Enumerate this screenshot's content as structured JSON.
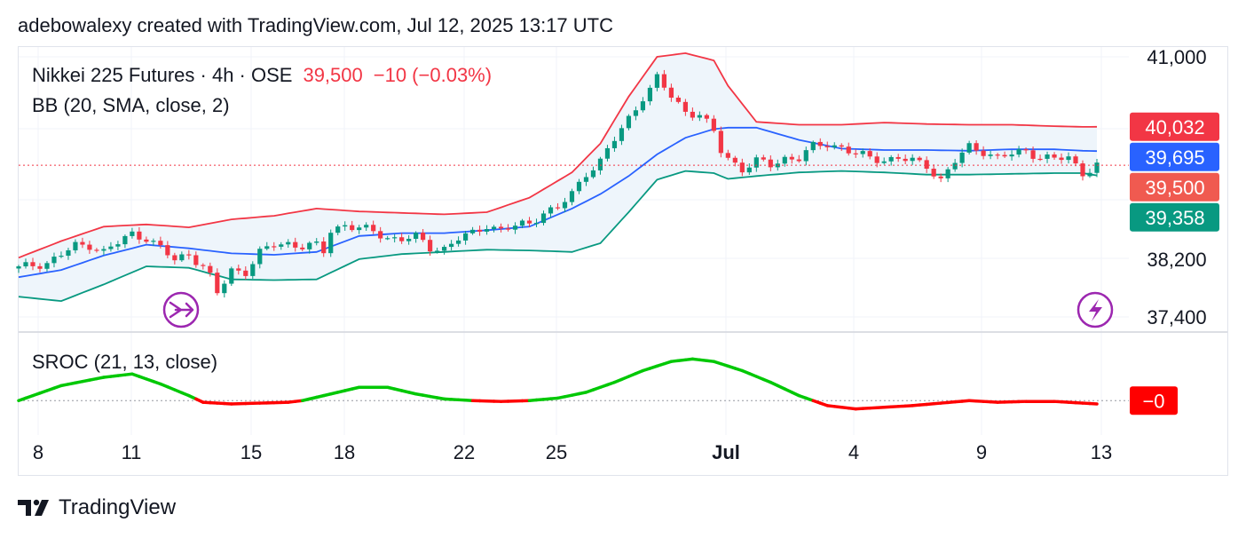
{
  "header": {
    "text": "adebowalexy created with TradingView.com, Jul 12, 2025 13:17 UTC"
  },
  "legend": {
    "symbol": "Nikkei 225 Futures · 4h · OSE",
    "price": "39,500",
    "change": "−10 (−0.03%)",
    "bb_label": "BB (20, SMA, close, 2)",
    "sroc_label": "SROC (21, 13, close)"
  },
  "footer": {
    "brand": "TradingView"
  },
  "colors": {
    "up": "#089981",
    "down": "#f23645",
    "bb_upper": "#f23645",
    "bb_basis": "#2962ff",
    "bb_lower": "#089981",
    "bb_fill": "#eef5fb",
    "sroc_up": "#00c805",
    "sroc_down": "#ff0000",
    "price_line": "#f23645",
    "icon": "#9c27b0"
  },
  "icons": {
    "left_marker": "replay-arrow-icon",
    "right_marker": "lightning-icon",
    "logo": "tradingview-logo-icon"
  },
  "chart_data": [
    {
      "type": "candlestick",
      "title": "Nikkei 225 Futures · 4h · OSE",
      "y_axis": {
        "ticks": [
          41000,
          38200,
          37400
        ],
        "range": [
          37200,
          41080
        ],
        "side": "right"
      },
      "x_axis": {
        "ticks": [
          "8",
          "11",
          "15",
          "18",
          "22",
          "25",
          "Jul",
          "4",
          "9",
          "13"
        ]
      },
      "price_labels": [
        {
          "label": "40,032",
          "value": 40032,
          "color": "#f23645"
        },
        {
          "label": "39,695",
          "value": 39695,
          "color": "#2962ff"
        },
        {
          "label": "39,500",
          "value": 39500,
          "color": "#f05a50"
        },
        {
          "label": "39,358",
          "value": 39358,
          "color": "#089981"
        }
      ],
      "last_price": 39500,
      "close_path": [
        [
          0,
          38070
        ],
        [
          2,
          38120
        ],
        [
          4,
          38150
        ],
        [
          6,
          38260
        ],
        [
          8,
          38380
        ],
        [
          10,
          38400
        ],
        [
          12,
          38300
        ],
        [
          14,
          38420
        ],
        [
          16,
          38550
        ],
        [
          18,
          38500
        ],
        [
          20,
          38350
        ],
        [
          22,
          38180
        ],
        [
          24,
          38280
        ],
        [
          26,
          38100
        ],
        [
          27,
          37950
        ],
        [
          28,
          37720
        ],
        [
          29,
          37880
        ],
        [
          30,
          38050
        ],
        [
          32,
          38030
        ],
        [
          34,
          38280
        ],
        [
          36,
          38400
        ],
        [
          38,
          38420
        ],
        [
          40,
          38380
        ],
        [
          42,
          38380
        ],
        [
          43,
          38300
        ],
        [
          44,
          38600
        ],
        [
          46,
          38680
        ],
        [
          48,
          38620
        ],
        [
          50,
          38580
        ],
        [
          52,
          38500
        ],
        [
          54,
          38480
        ],
        [
          56,
          38500
        ],
        [
          58,
          38360
        ],
        [
          60,
          38350
        ],
        [
          62,
          38480
        ],
        [
          64,
          38550
        ],
        [
          66,
          38680
        ],
        [
          68,
          38600
        ],
        [
          70,
          38650
        ],
        [
          72,
          38700
        ],
        [
          74,
          38850
        ],
        [
          76,
          38900
        ],
        [
          78,
          39100
        ],
        [
          80,
          39400
        ],
        [
          82,
          39550
        ],
        [
          84,
          39850
        ],
        [
          86,
          40150
        ],
        [
          88,
          40450
        ],
        [
          89,
          40550
        ],
        [
          90,
          40700
        ],
        [
          92,
          40450
        ],
        [
          94,
          40250
        ],
        [
          96,
          40200
        ],
        [
          98,
          39950
        ],
        [
          99,
          39700
        ],
        [
          100,
          39600
        ],
        [
          102,
          39450
        ],
        [
          104,
          39550
        ],
        [
          106,
          39500
        ],
        [
          108,
          39600
        ],
        [
          110,
          39600
        ],
        [
          112,
          39750
        ],
        [
          114,
          39800
        ],
        [
          116,
          39750
        ],
        [
          118,
          39650
        ],
        [
          120,
          39600
        ],
        [
          122,
          39580
        ],
        [
          124,
          39600
        ],
        [
          126,
          39550
        ],
        [
          128,
          39500
        ],
        [
          130,
          39300
        ],
        [
          132,
          39550
        ],
        [
          134,
          39750
        ],
        [
          136,
          39700
        ],
        [
          138,
          39600
        ],
        [
          140,
          39650
        ],
        [
          142,
          39700
        ],
        [
          144,
          39620
        ],
        [
          146,
          39580
        ],
        [
          148,
          39600
        ],
        [
          150,
          39400
        ],
        [
          152,
          39500
        ]
      ],
      "bb_upper": [
        [
          0,
          38220
        ],
        [
          6,
          38450
        ],
        [
          12,
          38650
        ],
        [
          18,
          38680
        ],
        [
          24,
          38640
        ],
        [
          30,
          38750
        ],
        [
          36,
          38800
        ],
        [
          42,
          38900
        ],
        [
          48,
          38860
        ],
        [
          54,
          38840
        ],
        [
          60,
          38820
        ],
        [
          66,
          38850
        ],
        [
          72,
          39050
        ],
        [
          78,
          39400
        ],
        [
          82,
          39800
        ],
        [
          86,
          40450
        ],
        [
          90,
          41000
        ],
        [
          94,
          41050
        ],
        [
          98,
          40950
        ],
        [
          100,
          40600
        ],
        [
          104,
          40100
        ],
        [
          110,
          40060
        ],
        [
          116,
          40060
        ],
        [
          122,
          40090
        ],
        [
          128,
          40070
        ],
        [
          134,
          40060
        ],
        [
          140,
          40060
        ],
        [
          146,
          40040
        ],
        [
          150,
          40030
        ],
        [
          152,
          40032
        ]
      ],
      "bb_basis": [
        [
          0,
          37950
        ],
        [
          6,
          38050
        ],
        [
          12,
          38250
        ],
        [
          18,
          38400
        ],
        [
          24,
          38350
        ],
        [
          30,
          38280
        ],
        [
          36,
          38260
        ],
        [
          42,
          38300
        ],
        [
          48,
          38520
        ],
        [
          54,
          38560
        ],
        [
          60,
          38560
        ],
        [
          66,
          38600
        ],
        [
          72,
          38650
        ],
        [
          78,
          38900
        ],
        [
          82,
          39100
        ],
        [
          86,
          39350
        ],
        [
          90,
          39650
        ],
        [
          94,
          39880
        ],
        [
          98,
          40000
        ],
        [
          100,
          40020
        ],
        [
          104,
          40020
        ],
        [
          110,
          39850
        ],
        [
          116,
          39730
        ],
        [
          122,
          39710
        ],
        [
          128,
          39710
        ],
        [
          134,
          39700
        ],
        [
          140,
          39720
        ],
        [
          146,
          39720
        ],
        [
          150,
          39700
        ],
        [
          152,
          39695
        ]
      ],
      "bb_lower": [
        [
          0,
          37680
        ],
        [
          6,
          37620
        ],
        [
          12,
          37850
        ],
        [
          18,
          38100
        ],
        [
          24,
          38080
        ],
        [
          30,
          37920
        ],
        [
          36,
          37910
        ],
        [
          42,
          37920
        ],
        [
          48,
          38200
        ],
        [
          54,
          38270
        ],
        [
          60,
          38300
        ],
        [
          66,
          38330
        ],
        [
          72,
          38320
        ],
        [
          78,
          38300
        ],
        [
          82,
          38420
        ],
        [
          86,
          38850
        ],
        [
          90,
          39300
        ],
        [
          94,
          39420
        ],
        [
          98,
          39390
        ],
        [
          100,
          39310
        ],
        [
          104,
          39350
        ],
        [
          110,
          39400
        ],
        [
          116,
          39420
        ],
        [
          122,
          39400
        ],
        [
          128,
          39370
        ],
        [
          134,
          39370
        ],
        [
          140,
          39380
        ],
        [
          146,
          39390
        ],
        [
          150,
          39390
        ],
        [
          152,
          39358
        ]
      ]
    },
    {
      "type": "line",
      "title": "SROC (21, 13, close)",
      "last_value_label": "−0",
      "zero_line": true,
      "values": [
        [
          0,
          0.0
        ],
        [
          6,
          0.18
        ],
        [
          12,
          0.28
        ],
        [
          16,
          0.32
        ],
        [
          20,
          0.2
        ],
        [
          24,
          0.06
        ],
        [
          26,
          -0.02
        ],
        [
          30,
          -0.04
        ],
        [
          34,
          -0.03
        ],
        [
          38,
          -0.02
        ],
        [
          40,
          0.0
        ],
        [
          44,
          0.08
        ],
        [
          48,
          0.16
        ],
        [
          52,
          0.16
        ],
        [
          56,
          0.08
        ],
        [
          60,
          0.02
        ],
        [
          64,
          0.0
        ],
        [
          68,
          -0.01
        ],
        [
          72,
          0.0
        ],
        [
          76,
          0.03
        ],
        [
          80,
          0.1
        ],
        [
          84,
          0.22
        ],
        [
          88,
          0.36
        ],
        [
          92,
          0.47
        ],
        [
          95,
          0.5
        ],
        [
          98,
          0.47
        ],
        [
          102,
          0.36
        ],
        [
          106,
          0.22
        ],
        [
          110,
          0.06
        ],
        [
          114,
          -0.06
        ],
        [
          118,
          -0.1
        ],
        [
          122,
          -0.08
        ],
        [
          126,
          -0.06
        ],
        [
          130,
          -0.03
        ],
        [
          134,
          0.0
        ],
        [
          138,
          -0.02
        ],
        [
          142,
          -0.01
        ],
        [
          146,
          -0.01
        ],
        [
          150,
          -0.03
        ],
        [
          152,
          -0.04
        ]
      ],
      "ylim": [
        -0.2,
        0.6
      ]
    }
  ]
}
